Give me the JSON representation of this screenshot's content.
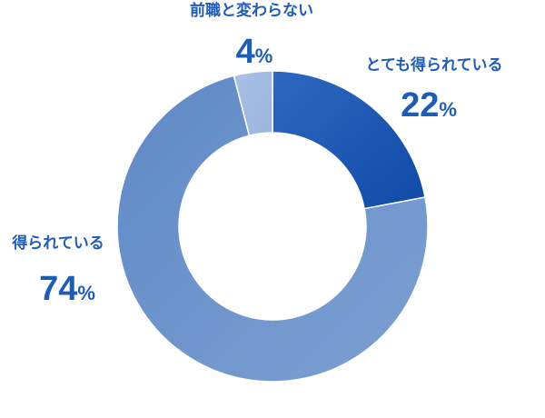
{
  "chart_data": {
    "type": "pie",
    "categories": [
      "とても得られている",
      "得られている",
      "前職と変わらない"
    ],
    "values": [
      22,
      74,
      4
    ],
    "unit": "%",
    "colors": {
      "label_text": "#1f5cb3",
      "slices": [
        "#1f5cb3",
        "#6f95cc",
        "#a2bce2"
      ],
      "slice_gradients": [
        [
          "#2f68c0",
          "#0f4aa6"
        ],
        [
          "#5f89c6",
          "#7da0d2"
        ],
        [
          "#a8c0e4",
          "#9bb5de"
        ]
      ]
    }
  }
}
